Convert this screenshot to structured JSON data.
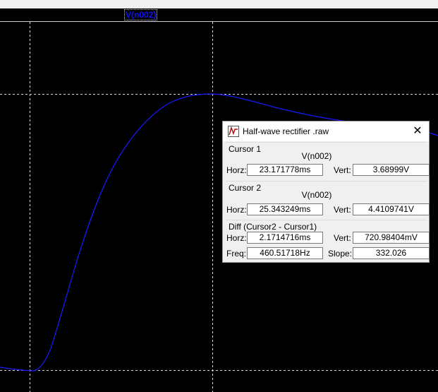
{
  "plot": {
    "trace_label": "V(n002)",
    "trace_color": "#1a1aff",
    "grid_color": "#d8d8d8"
  },
  "dialog": {
    "title": "Half-wave rectifier .raw",
    "cursor1": {
      "header": "Cursor 1",
      "trace": "V(n002)",
      "horz_label": "Horz:",
      "horz": "23.171778ms",
      "vert_label": "Vert:",
      "vert": "3.68999V"
    },
    "cursor2": {
      "header": "Cursor 2",
      "trace": "V(n002)",
      "horz_label": "Horz:",
      "horz": "25.343249ms",
      "vert_label": "Vert:",
      "vert": "4.4109741V"
    },
    "diff": {
      "header": "Diff (Cursor2 - Cursor1)",
      "horz_label": "Horz:",
      "horz": "2.1714716ms",
      "vert_label": "Vert:",
      "vert": "720.98404mV",
      "freq_label": "Freq:",
      "freq": "460.51718Hz",
      "slope_label": "Slope:",
      "slope": "332.026"
    }
  }
}
